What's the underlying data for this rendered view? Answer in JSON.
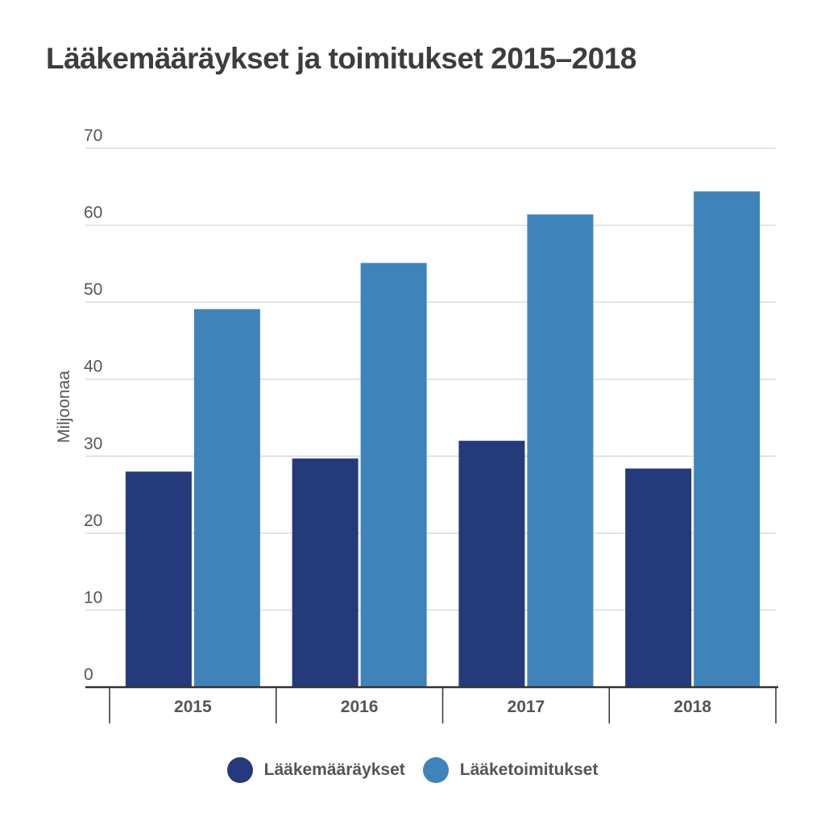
{
  "chart_data": {
    "type": "bar",
    "title": "Lääkemääräykset ja toimitukset 2015–2018",
    "xlabel": "",
    "ylabel": "Miljoonaa",
    "ylim": [
      0,
      70
    ],
    "yticks": [
      0,
      10,
      20,
      30,
      40,
      50,
      60,
      70
    ],
    "grid": true,
    "legend_position": "bottom",
    "categories": [
      "2015",
      "2016",
      "2017",
      "2018"
    ],
    "series": [
      {
        "name": "Lääkemääräykset",
        "color": "#253a7a",
        "values": [
          28,
          29.7,
          32,
          28.4
        ]
      },
      {
        "name": "Lääketoimitukset",
        "color": "#3e84bb",
        "values": [
          49.1,
          55.1,
          61.4,
          64.4
        ]
      }
    ]
  }
}
